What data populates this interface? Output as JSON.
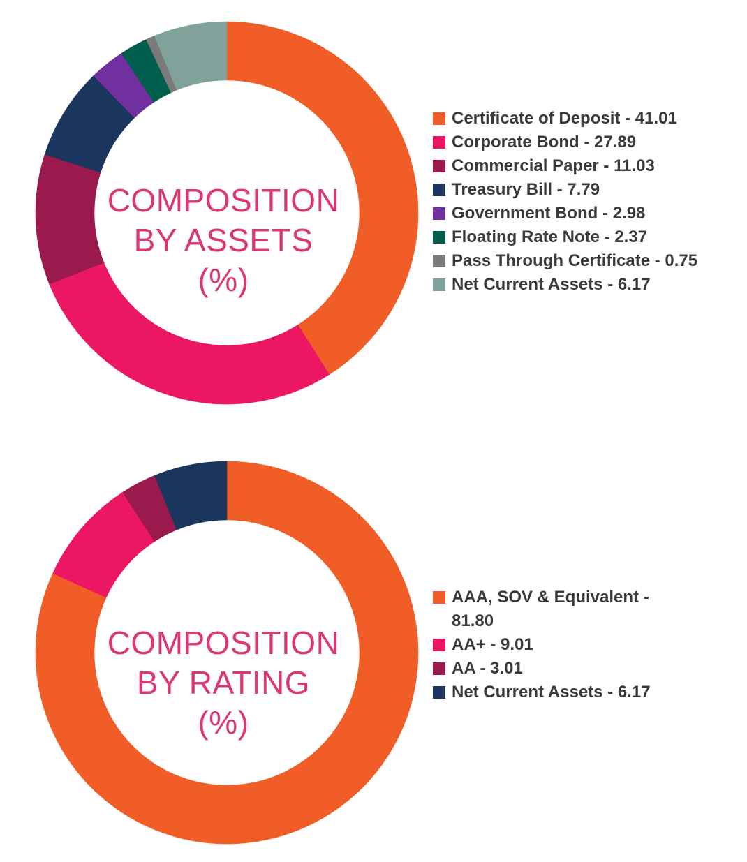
{
  "chart_data": [
    {
      "type": "pie",
      "title": "COMPOSITION BY ASSETS (%)",
      "center_label": [
        "COMPOSITION",
        "BY ASSETS",
        "(%)"
      ],
      "slices": [
        {
          "label": "Certificate of Deposit - 41.01",
          "value": 41.01,
          "color": "#f15d27"
        },
        {
          "label": "Corporate Bond - 27.89",
          "value": 27.89,
          "color": "#ec1763"
        },
        {
          "label": "Commercial Paper - 11.03",
          "value": 11.03,
          "color": "#9a1a4e"
        },
        {
          "label": "Treasury Bill - 7.79",
          "value": 7.79,
          "color": "#1b365d"
        },
        {
          "label": "Government Bond - 2.98",
          "value": 2.98,
          "color": "#7030a0"
        },
        {
          "label": "Floating Rate Note - 2.37",
          "value": 2.37,
          "color": "#005e4e"
        },
        {
          "label": "Pass Through Certificate - 0.75",
          "value": 0.75,
          "color": "#7a7a7a"
        },
        {
          "label": "Net Current Assets - 6.17",
          "value": 6.17,
          "color": "#7fa39a"
        }
      ],
      "legend_position": "right"
    },
    {
      "type": "pie",
      "title": "COMPOSITION BY RATING (%)",
      "center_label": [
        "COMPOSITION",
        "BY RATING",
        "(%)"
      ],
      "slices": [
        {
          "label": "AAA, SOV & Equivalent - 81.80",
          "value": 81.8,
          "color": "#f15d27"
        },
        {
          "label": "AA+ - 9.01",
          "value": 9.01,
          "color": "#ec1763"
        },
        {
          "label": "AA - 3.01",
          "value": 3.01,
          "color": "#9a1a4e"
        },
        {
          "label": "Net Current Assets - 6.17",
          "value": 6.17,
          "color": "#1b365d"
        }
      ],
      "legend_position": "right"
    }
  ]
}
